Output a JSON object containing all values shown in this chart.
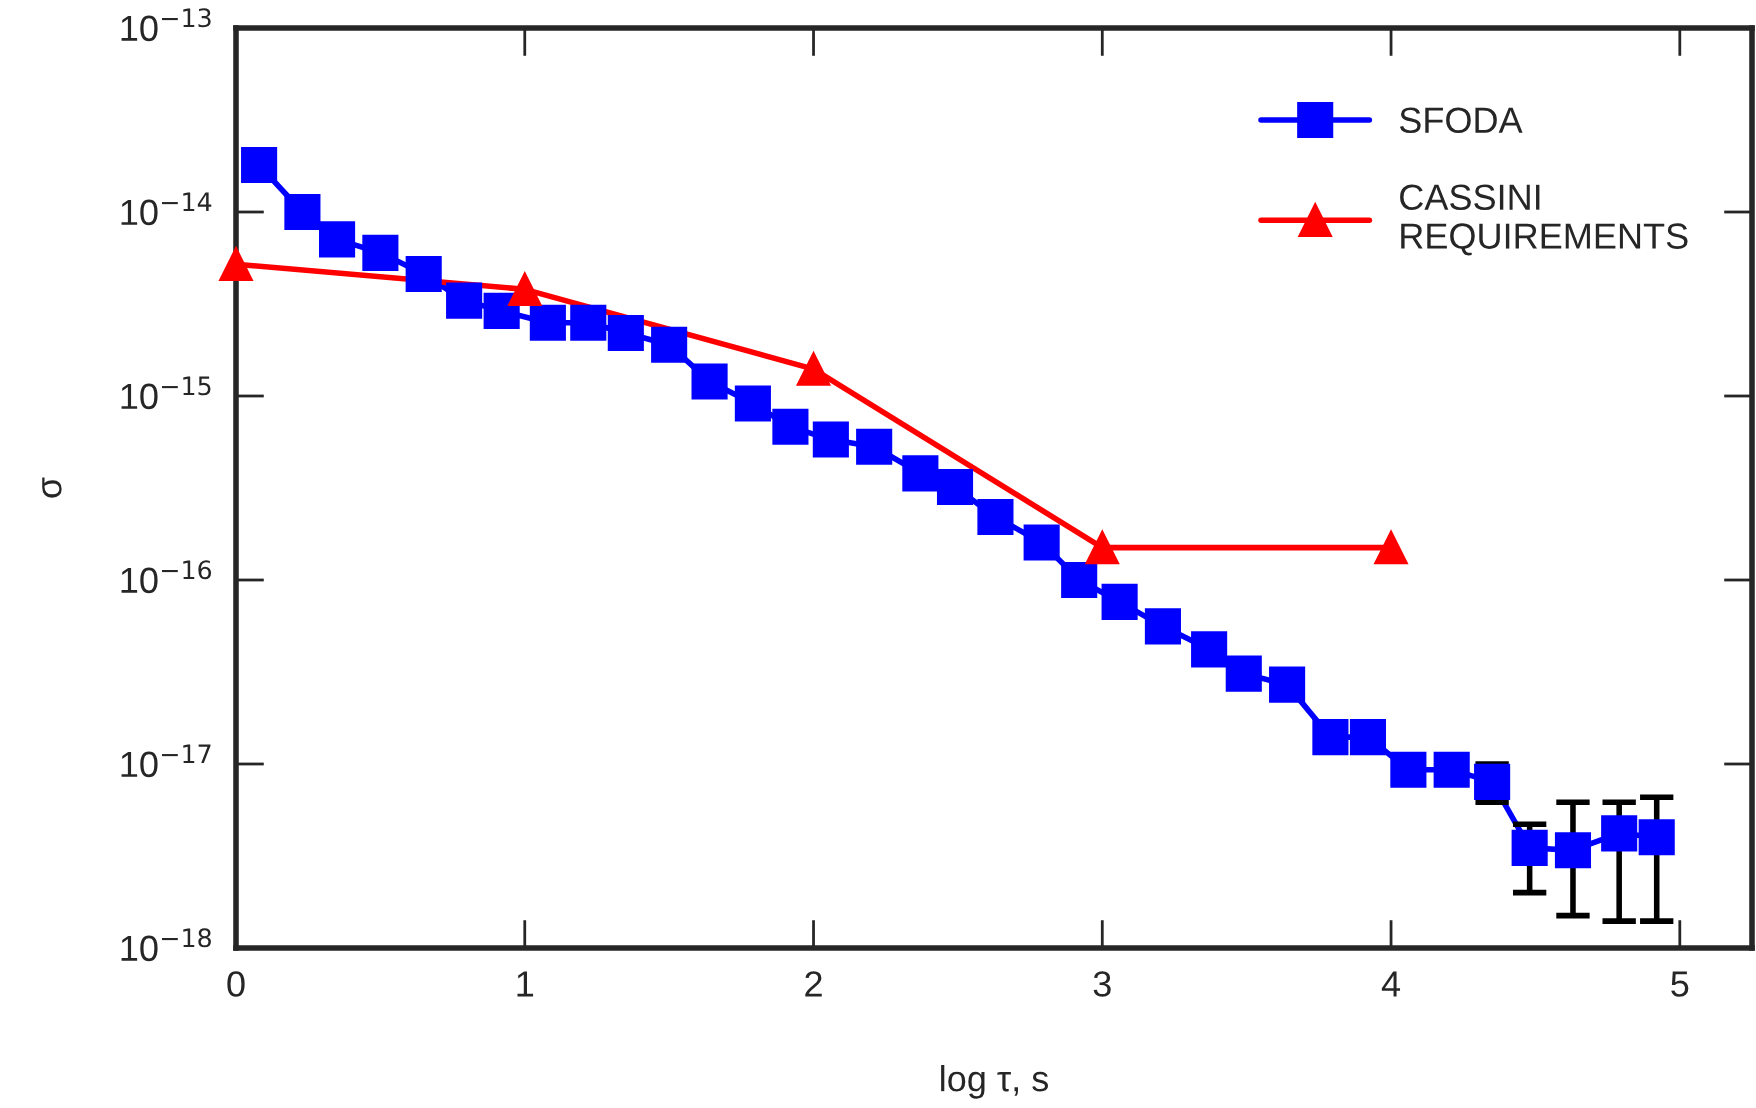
{
  "chart_data": {
    "type": "line",
    "xlabel": "log τ, s",
    "ylabel": "σ",
    "log": "y",
    "xlim": [
      0,
      5.25
    ],
    "ylim": [
      1e-18,
      1e-13
    ],
    "xticks": [
      0,
      1,
      2,
      3,
      4,
      5
    ],
    "yticks": [
      {
        "value": 1e-18,
        "label": "10$^{−18}$"
      },
      {
        "value": 1e-17,
        "label": "10$^{−17}$"
      },
      {
        "value": 1e-16,
        "label": "10$^{−16}$"
      },
      {
        "value": 1e-15,
        "label": "10$^{−15}$"
      },
      {
        "value": 1e-14,
        "label": "10$^{−14}$"
      },
      {
        "value": 1e-13,
        "label": "10$^{−13}$"
      }
    ],
    "grid": false,
    "legend": "top right",
    "line_style": "solid",
    "series": [
      {
        "name": "SFODA",
        "color": "#0000ff",
        "marker": "square",
        "x": [
          0.08,
          0.23,
          0.35,
          0.5,
          0.65,
          0.79,
          0.92,
          1.08,
          1.22,
          1.35,
          1.5,
          1.64,
          1.79,
          1.92,
          2.06,
          2.21,
          2.37,
          2.49,
          2.63,
          2.79,
          2.92,
          3.06,
          3.21,
          3.37,
          3.49,
          3.64,
          3.79,
          3.92,
          4.06,
          4.21,
          4.35,
          4.48,
          4.63,
          4.79,
          4.92
        ],
        "values": [
          1.8e-14,
          1e-14,
          7.1e-15,
          6e-15,
          4.6e-15,
          3.3e-15,
          2.9e-15,
          2.5e-15,
          2.5e-15,
          2.2e-15,
          1.9e-15,
          1.2e-15,
          9.1e-16,
          6.8e-16,
          5.8e-16,
          5.3e-16,
          3.8e-16,
          3.2e-16,
          2.2e-16,
          1.6e-16,
          1e-16,
          7.6e-17,
          5.6e-17,
          4.2e-17,
          3.1e-17,
          2.7e-17,
          1.4e-17,
          1.4e-17,
          9.3e-18,
          9.3e-18,
          8e-18,
          3.5e-18,
          3.4e-18,
          4.2e-18,
          4e-18
        ],
        "errors": [
          null,
          null,
          null,
          null,
          null,
          null,
          null,
          null,
          null,
          null,
          null,
          null,
          null,
          null,
          null,
          null,
          null,
          null,
          null,
          null,
          null,
          null,
          null,
          null,
          null,
          null,
          null,
          null,
          null,
          null,
          [
            6.2e-18,
            1e-17
          ],
          [
            2e-18,
            4.7e-18
          ],
          [
            1.5e-18,
            6.2e-18
          ],
          [
            1.4e-18,
            6.2e-18
          ],
          [
            1.4e-18,
            6.6e-18
          ]
        ]
      },
      {
        "name": "CASSINI\nREQUIREMENTS",
        "color": "#ff0000",
        "marker": "triangle",
        "x": [
          0,
          1,
          2,
          3,
          4
        ],
        "values": [
          5.2e-15,
          3.8e-15,
          1.4e-15,
          1.5e-16,
          1.5e-16
        ]
      }
    ]
  }
}
